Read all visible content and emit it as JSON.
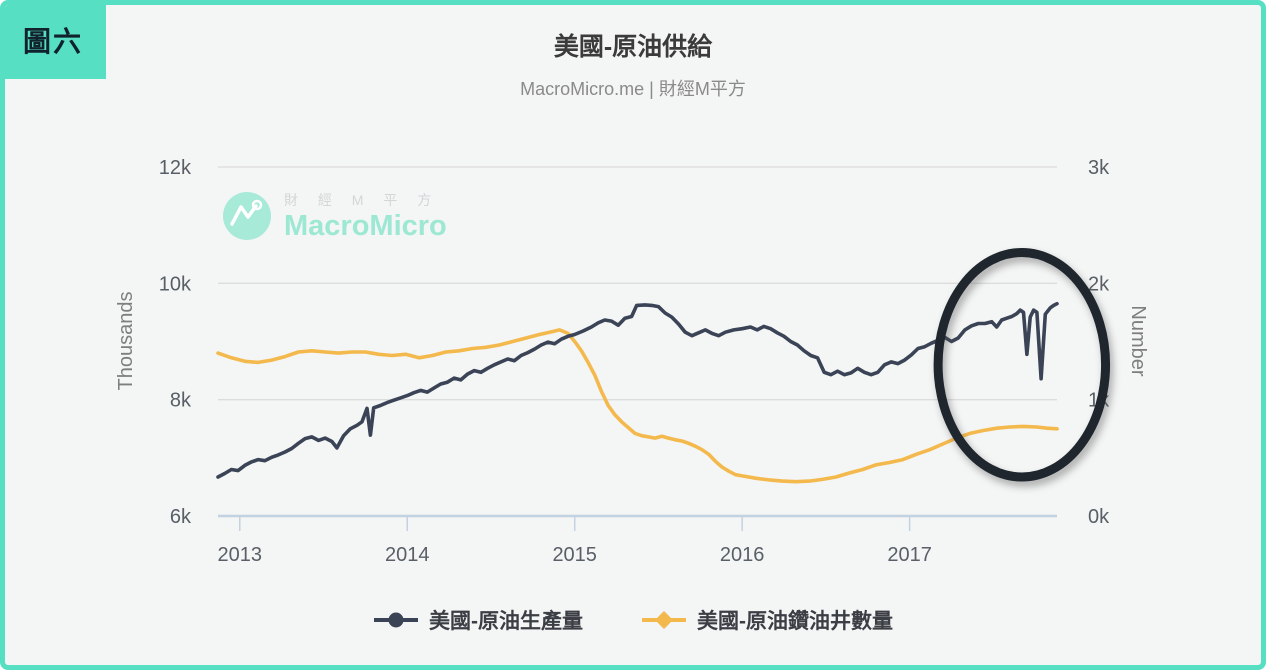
{
  "figure_badge": "圖六",
  "title": "美國-原油供給",
  "subtitle": "MacroMicro.me | 財經M平方",
  "watermark": {
    "cjk": "財 經 M 平 方",
    "brand": "MacroMicro"
  },
  "colors": {
    "accent_teal": "#57dfc4",
    "background": "#f4f5f5",
    "grid": "#dcdcdc",
    "axis_line": "#c3d2e0",
    "tick_label": "#585f66"
  },
  "chart_data": {
    "type": "line",
    "title": "美國-原油供給",
    "subtitle": "MacroMicro.me | 財經M平方",
    "grid": "horizontal-only",
    "legend_position": "bottom-center",
    "x_range": [
      2012.87,
      2017.88
    ],
    "x_ticks": [
      2013,
      2014,
      2015,
      2016,
      2017
    ],
    "x_tick_labels": [
      "2013",
      "2014",
      "2015",
      "2016",
      "2017"
    ],
    "left_axis": {
      "label": "Thousands",
      "range": [
        6,
        12
      ],
      "tick_values": [
        12,
        10,
        8,
        6
      ],
      "tick_labels": [
        "12k",
        "10k",
        "8k",
        "6k"
      ],
      "gridline_values": [
        12,
        10,
        8
      ]
    },
    "right_axis": {
      "label": "Number",
      "range": [
        0,
        3
      ],
      "tick_values": [
        3,
        2,
        1,
        0
      ],
      "tick_labels": [
        "3k",
        "2k",
        "1k",
        "0k"
      ]
    },
    "series": [
      {
        "name": "美國-原油生產量",
        "axis": "left",
        "color": "#3b4456",
        "marker": "circle",
        "unit": "thousands (k)",
        "points": [
          [
            2012.87,
            6.67
          ],
          [
            2012.91,
            6.73
          ],
          [
            2012.95,
            6.8
          ],
          [
            2012.99,
            6.78
          ],
          [
            2013.03,
            6.87
          ],
          [
            2013.07,
            6.93
          ],
          [
            2013.11,
            6.97
          ],
          [
            2013.15,
            6.95
          ],
          [
            2013.19,
            7.01
          ],
          [
            2013.23,
            7.05
          ],
          [
            2013.27,
            7.1
          ],
          [
            2013.31,
            7.16
          ],
          [
            2013.35,
            7.25
          ],
          [
            2013.39,
            7.33
          ],
          [
            2013.43,
            7.36
          ],
          [
            2013.47,
            7.3
          ],
          [
            2013.51,
            7.34
          ],
          [
            2013.55,
            7.28
          ],
          [
            2013.58,
            7.17
          ],
          [
            2013.62,
            7.38
          ],
          [
            2013.66,
            7.5
          ],
          [
            2013.7,
            7.56
          ],
          [
            2013.73,
            7.62
          ],
          [
            2013.76,
            7.85
          ],
          [
            2013.78,
            7.39
          ],
          [
            2013.8,
            7.86
          ],
          [
            2013.84,
            7.9
          ],
          [
            2013.88,
            7.95
          ],
          [
            2013.92,
            7.99
          ],
          [
            2013.96,
            8.03
          ],
          [
            2014.0,
            8.07
          ],
          [
            2014.04,
            8.12
          ],
          [
            2014.08,
            8.16
          ],
          [
            2014.12,
            8.13
          ],
          [
            2014.16,
            8.2
          ],
          [
            2014.2,
            8.27
          ],
          [
            2014.24,
            8.3
          ],
          [
            2014.28,
            8.37
          ],
          [
            2014.32,
            8.34
          ],
          [
            2014.36,
            8.44
          ],
          [
            2014.4,
            8.5
          ],
          [
            2014.44,
            8.47
          ],
          [
            2014.48,
            8.54
          ],
          [
            2014.52,
            8.6
          ],
          [
            2014.56,
            8.65
          ],
          [
            2014.6,
            8.7
          ],
          [
            2014.64,
            8.67
          ],
          [
            2014.68,
            8.76
          ],
          [
            2014.72,
            8.81
          ],
          [
            2014.76,
            8.87
          ],
          [
            2014.8,
            8.94
          ],
          [
            2014.84,
            8.99
          ],
          [
            2014.88,
            8.96
          ],
          [
            2014.92,
            9.04
          ],
          [
            2014.96,
            9.09
          ],
          [
            2015.0,
            9.12
          ],
          [
            2015.05,
            9.18
          ],
          [
            2015.1,
            9.25
          ],
          [
            2015.14,
            9.32
          ],
          [
            2015.18,
            9.37
          ],
          [
            2015.22,
            9.35
          ],
          [
            2015.26,
            9.28
          ],
          [
            2015.3,
            9.4
          ],
          [
            2015.34,
            9.43
          ],
          [
            2015.37,
            9.62
          ],
          [
            2015.42,
            9.63
          ],
          [
            2015.46,
            9.62
          ],
          [
            2015.5,
            9.6
          ],
          [
            2015.54,
            9.49
          ],
          [
            2015.58,
            9.42
          ],
          [
            2015.62,
            9.3
          ],
          [
            2015.66,
            9.16
          ],
          [
            2015.7,
            9.1
          ],
          [
            2015.74,
            9.15
          ],
          [
            2015.78,
            9.2
          ],
          [
            2015.82,
            9.14
          ],
          [
            2015.86,
            9.1
          ],
          [
            2015.9,
            9.16
          ],
          [
            2015.95,
            9.2
          ],
          [
            2016.0,
            9.22
          ],
          [
            2016.05,
            9.25
          ],
          [
            2016.09,
            9.2
          ],
          [
            2016.13,
            9.26
          ],
          [
            2016.17,
            9.22
          ],
          [
            2016.21,
            9.15
          ],
          [
            2016.25,
            9.09
          ],
          [
            2016.29,
            9.0
          ],
          [
            2016.33,
            8.94
          ],
          [
            2016.37,
            8.84
          ],
          [
            2016.41,
            8.76
          ],
          [
            2016.45,
            8.72
          ],
          [
            2016.49,
            8.47
          ],
          [
            2016.53,
            8.43
          ],
          [
            2016.57,
            8.49
          ],
          [
            2016.61,
            8.43
          ],
          [
            2016.65,
            8.46
          ],
          [
            2016.69,
            8.54
          ],
          [
            2016.73,
            8.47
          ],
          [
            2016.77,
            8.43
          ],
          [
            2016.81,
            8.47
          ],
          [
            2016.85,
            8.6
          ],
          [
            2016.89,
            8.65
          ],
          [
            2016.93,
            8.62
          ],
          [
            2016.97,
            8.68
          ],
          [
            2017.01,
            8.77
          ],
          [
            2017.05,
            8.88
          ],
          [
            2017.09,
            8.91
          ],
          [
            2017.13,
            8.97
          ],
          [
            2017.17,
            9.02
          ],
          [
            2017.21,
            9.07
          ],
          [
            2017.25,
            9.0
          ],
          [
            2017.29,
            9.06
          ],
          [
            2017.33,
            9.2
          ],
          [
            2017.37,
            9.27
          ],
          [
            2017.41,
            9.31
          ],
          [
            2017.45,
            9.31
          ],
          [
            2017.49,
            9.34
          ],
          [
            2017.52,
            9.25
          ],
          [
            2017.55,
            9.37
          ],
          [
            2017.58,
            9.4
          ],
          [
            2017.61,
            9.43
          ],
          [
            2017.64,
            9.48
          ],
          [
            2017.66,
            9.54
          ],
          [
            2017.68,
            9.5
          ],
          [
            2017.7,
            8.78
          ],
          [
            2017.72,
            9.42
          ],
          [
            2017.74,
            9.54
          ],
          [
            2017.76,
            9.5
          ],
          [
            2017.785,
            8.36
          ],
          [
            2017.81,
            9.47
          ],
          [
            2017.84,
            9.58
          ],
          [
            2017.86,
            9.62
          ],
          [
            2017.88,
            9.65
          ]
        ]
      },
      {
        "name": "美國-原油鑽油井數量",
        "axis": "right",
        "color": "#f4b94d",
        "marker": "diamond",
        "unit": "number (k)",
        "points": [
          [
            2012.87,
            1.4
          ],
          [
            2012.95,
            1.36
          ],
          [
            2013.03,
            1.33
          ],
          [
            2013.11,
            1.32
          ],
          [
            2013.19,
            1.34
          ],
          [
            2013.27,
            1.37
          ],
          [
            2013.35,
            1.41
          ],
          [
            2013.43,
            1.42
          ],
          [
            2013.51,
            1.41
          ],
          [
            2013.59,
            1.4
          ],
          [
            2013.67,
            1.41
          ],
          [
            2013.75,
            1.41
          ],
          [
            2013.83,
            1.39
          ],
          [
            2013.91,
            1.38
          ],
          [
            2013.99,
            1.39
          ],
          [
            2014.07,
            1.36
          ],
          [
            2014.15,
            1.38
          ],
          [
            2014.23,
            1.41
          ],
          [
            2014.31,
            1.42
          ],
          [
            2014.39,
            1.44
          ],
          [
            2014.47,
            1.45
          ],
          [
            2014.55,
            1.47
          ],
          [
            2014.63,
            1.5
          ],
          [
            2014.71,
            1.53
          ],
          [
            2014.79,
            1.56
          ],
          [
            2014.85,
            1.58
          ],
          [
            2014.91,
            1.6
          ],
          [
            2014.96,
            1.57
          ],
          [
            2015.0,
            1.5
          ],
          [
            2015.04,
            1.42
          ],
          [
            2015.08,
            1.32
          ],
          [
            2015.12,
            1.21
          ],
          [
            2015.16,
            1.07
          ],
          [
            2015.2,
            0.95
          ],
          [
            2015.24,
            0.87
          ],
          [
            2015.28,
            0.81
          ],
          [
            2015.32,
            0.76
          ],
          [
            2015.36,
            0.71
          ],
          [
            2015.4,
            0.69
          ],
          [
            2015.44,
            0.68
          ],
          [
            2015.48,
            0.67
          ],
          [
            2015.52,
            0.685
          ],
          [
            2015.56,
            0.67
          ],
          [
            2015.6,
            0.655
          ],
          [
            2015.64,
            0.645
          ],
          [
            2015.68,
            0.625
          ],
          [
            2015.72,
            0.6
          ],
          [
            2015.76,
            0.57
          ],
          [
            2015.8,
            0.53
          ],
          [
            2015.84,
            0.47
          ],
          [
            2015.88,
            0.42
          ],
          [
            2015.92,
            0.385
          ],
          [
            2015.96,
            0.355
          ],
          [
            2016.0,
            0.345
          ],
          [
            2016.08,
            0.325
          ],
          [
            2016.16,
            0.31
          ],
          [
            2016.24,
            0.3
          ],
          [
            2016.32,
            0.295
          ],
          [
            2016.4,
            0.3
          ],
          [
            2016.48,
            0.315
          ],
          [
            2016.56,
            0.335
          ],
          [
            2016.64,
            0.37
          ],
          [
            2016.72,
            0.4
          ],
          [
            2016.8,
            0.44
          ],
          [
            2016.88,
            0.46
          ],
          [
            2016.96,
            0.485
          ],
          [
            2017.04,
            0.53
          ],
          [
            2017.12,
            0.57
          ],
          [
            2017.2,
            0.62
          ],
          [
            2017.28,
            0.67
          ],
          [
            2017.36,
            0.71
          ],
          [
            2017.44,
            0.735
          ],
          [
            2017.52,
            0.755
          ],
          [
            2017.6,
            0.765
          ],
          [
            2017.68,
            0.77
          ],
          [
            2017.76,
            0.765
          ],
          [
            2017.82,
            0.755
          ],
          [
            2017.88,
            0.75
          ]
        ]
      }
    ],
    "annotation": {
      "shape": "ellipse",
      "meaning": "highlights late-2017 production dips",
      "center_x_year": 2017.67,
      "center_y_left": 8.6,
      "radius_x_years": 0.5,
      "radius_y_left": 1.93,
      "stroke_color": "#20262e",
      "stroke_width": 9
    }
  }
}
